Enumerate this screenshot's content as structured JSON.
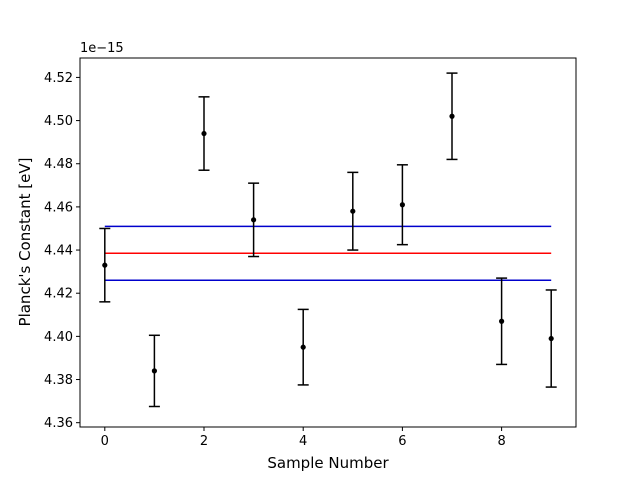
{
  "chart_data": {
    "type": "scatter",
    "title": "",
    "xlabel": "Sample Number",
    "ylabel": "Planck's Constant [eV]",
    "y_offset_label": "1e−15",
    "xlim": [
      -0.5,
      9.5
    ],
    "ylim": [
      4.358,
      4.529
    ],
    "xticks": [
      0,
      2,
      4,
      6,
      8
    ],
    "yticks": [
      4.36,
      4.38,
      4.4,
      4.42,
      4.44,
      4.46,
      4.48,
      4.5,
      4.52
    ],
    "ytick_labels": [
      "4.36",
      "4.38",
      "4.40",
      "4.42",
      "4.44",
      "4.46",
      "4.48",
      "4.50",
      "4.52"
    ],
    "grid": false,
    "series": [
      {
        "kind": "errorbar",
        "color": "#000000",
        "x": [
          0,
          1,
          2,
          3,
          4,
          5,
          6,
          7,
          8,
          9
        ],
        "y": [
          4.433,
          4.384,
          4.494,
          4.454,
          4.395,
          4.458,
          4.461,
          4.502,
          4.407,
          4.399
        ],
        "yerr": [
          0.017,
          0.0165,
          0.017,
          0.017,
          0.0175,
          0.018,
          0.0185,
          0.02,
          0.02,
          0.0225
        ]
      },
      {
        "kind": "hline",
        "color": "#ff0000",
        "y": 4.4385,
        "xmin": 0,
        "xmax": 9
      },
      {
        "kind": "hline",
        "color": "#0000cc",
        "y": 4.451,
        "xmin": 0,
        "xmax": 9
      },
      {
        "kind": "hline",
        "color": "#0000cc",
        "y": 4.426,
        "xmin": 0,
        "xmax": 9
      }
    ]
  }
}
